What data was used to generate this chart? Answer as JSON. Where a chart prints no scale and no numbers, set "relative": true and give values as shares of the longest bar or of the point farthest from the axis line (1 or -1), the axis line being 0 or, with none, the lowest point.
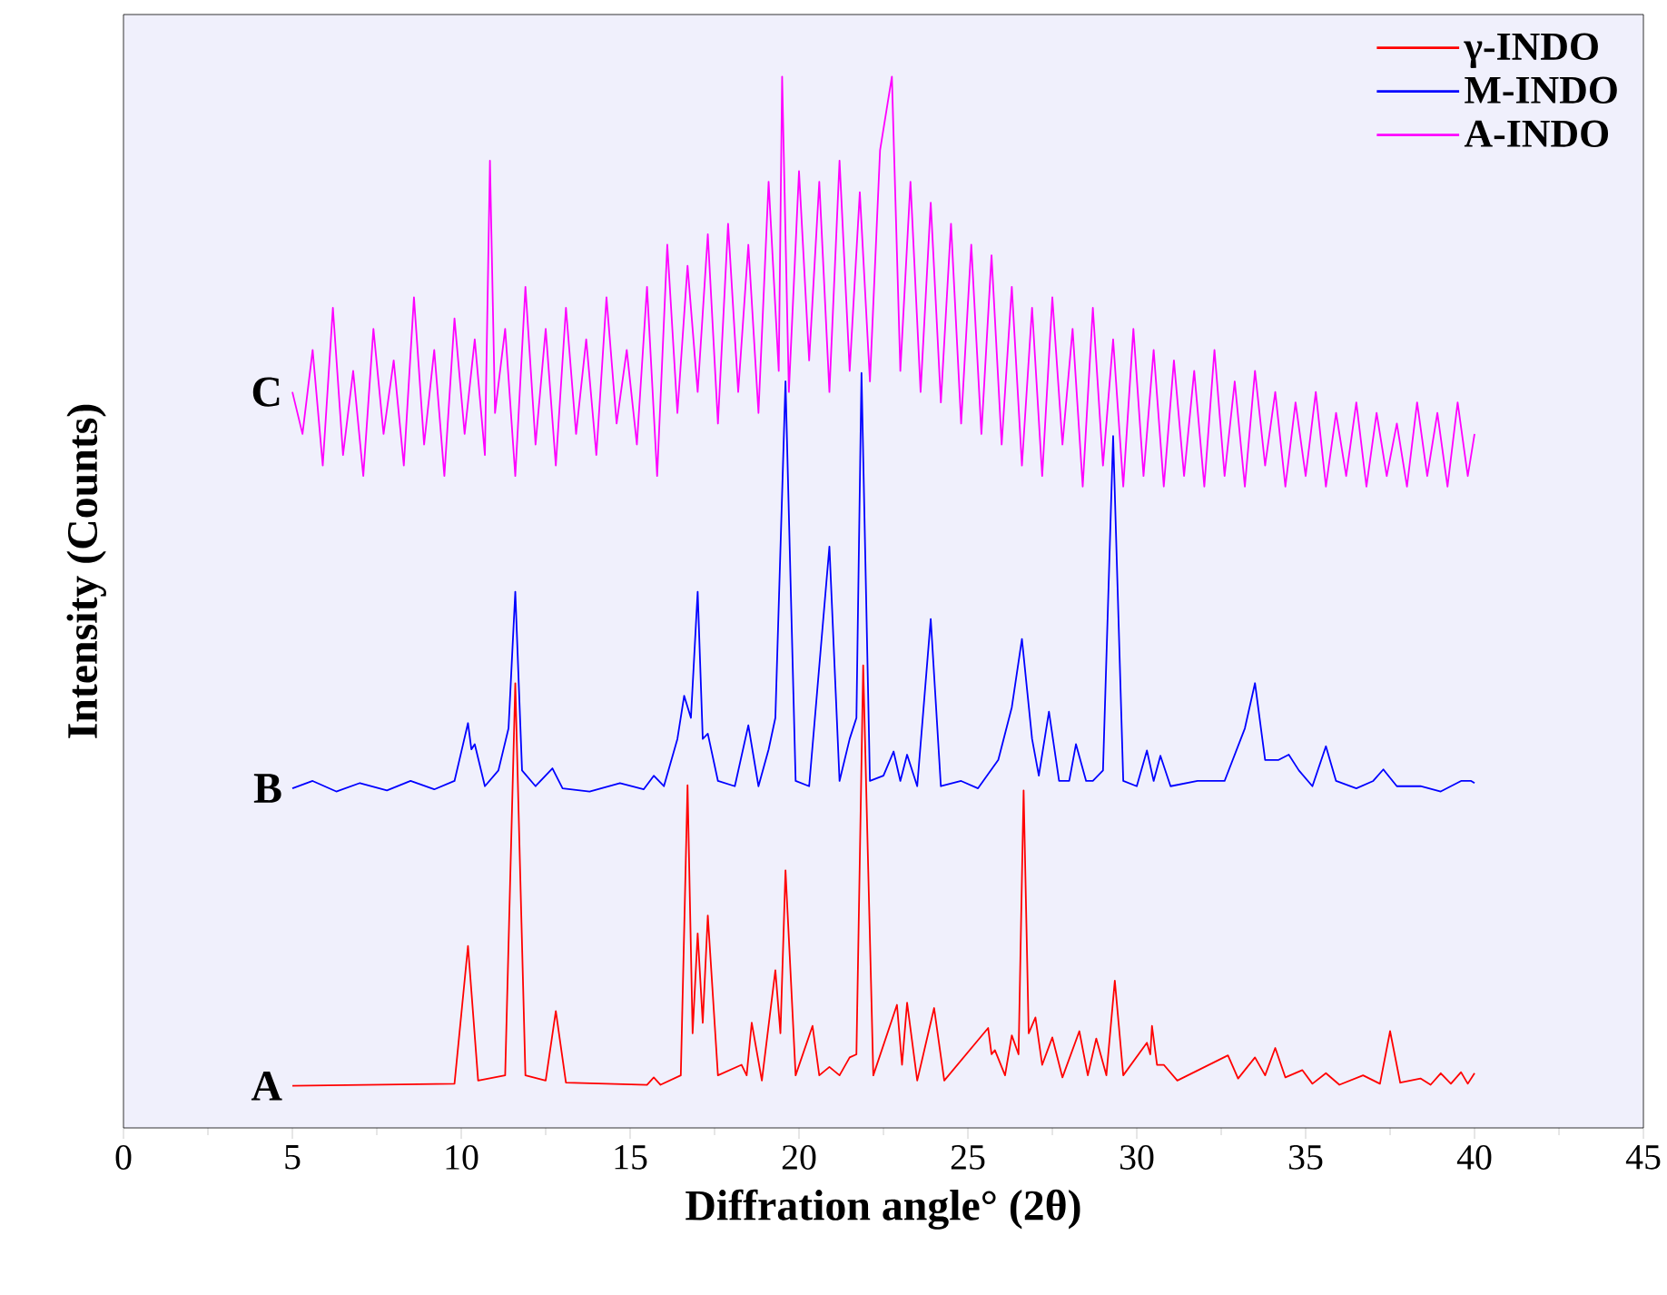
{
  "chart_data": {
    "type": "line",
    "relative": true,
    "xlabel": "Diffration angle° (2θ)",
    "ylabel": "Intensity (Counts)",
    "xlim": [
      0,
      45
    ],
    "xticks": [
      0,
      5,
      10,
      15,
      20,
      25,
      30,
      35,
      40,
      45
    ],
    "legend": "top right",
    "grid": false,
    "marker": "none",
    "line_style": "solid",
    "annotations": [
      "A",
      "B",
      "C"
    ],
    "series": [
      {
        "name": "γ-INDO",
        "color": "#ff0000",
        "x": [
          5,
          9.8,
          10.2,
          10.5,
          11.3,
          11.6,
          11.9,
          12.5,
          12.8,
          13.1,
          15.5,
          15.7,
          15.9,
          16.5,
          16.7,
          16.85,
          17.0,
          17.15,
          17.3,
          17.6,
          18.3,
          18.45,
          18.6,
          18.9,
          19.3,
          19.45,
          19.6,
          19.9,
          20.4,
          20.6,
          20.9,
          21.2,
          21.5,
          21.7,
          21.9,
          22.2,
          22.9,
          23.05,
          23.2,
          23.5,
          24.0,
          24.3,
          25.6,
          25.7,
          25.8,
          26.1,
          26.3,
          26.5,
          26.65,
          26.8,
          27.0,
          27.2,
          27.5,
          27.8,
          28.3,
          28.55,
          28.8,
          29.1,
          29.35,
          29.6,
          30.3,
          30.4,
          30.45,
          30.6,
          30.8,
          31.2,
          32.7,
          33.0,
          33.5,
          33.8,
          34.1,
          34.4,
          34.9,
          35.2,
          35.6,
          36.0,
          36.7,
          37.2,
          37.5,
          37.8,
          38.4,
          38.7,
          39.0,
          39.3,
          39.6,
          39.8,
          40
        ],
        "values": [
          0.04,
          0.042,
          0.173,
          0.045,
          0.05,
          0.423,
          0.05,
          0.045,
          0.111,
          0.043,
          0.041,
          0.048,
          0.041,
          0.05,
          0.326,
          0.09,
          0.185,
          0.1,
          0.202,
          0.05,
          0.06,
          0.05,
          0.1,
          0.045,
          0.15,
          0.09,
          0.245,
          0.05,
          0.097,
          0.05,
          0.058,
          0.05,
          0.067,
          0.07,
          0.44,
          0.05,
          0.117,
          0.06,
          0.119,
          0.045,
          0.114,
          0.045,
          0.095,
          0.07,
          0.074,
          0.05,
          0.088,
          0.07,
          0.321,
          0.09,
          0.105,
          0.06,
          0.086,
          0.048,
          0.092,
          0.05,
          0.085,
          0.05,
          0.14,
          0.05,
          0.081,
          0.07,
          0.097,
          0.06,
          0.06,
          0.045,
          0.069,
          0.047,
          0.067,
          0.05,
          0.076,
          0.048,
          0.055,
          0.042,
          0.052,
          0.041,
          0.05,
          0.042,
          0.092,
          0.043,
          0.047,
          0.041,
          0.052,
          0.042,
          0.053,
          0.042,
          0.052
        ]
      },
      {
        "name": "M-INDO",
        "color": "#0000ff",
        "x": [
          5,
          5.6,
          6.3,
          7.0,
          7.8,
          8.5,
          9.2,
          9.8,
          10.2,
          10.3,
          10.4,
          10.7,
          11.1,
          11.4,
          11.6,
          11.8,
          12.2,
          12.7,
          13.0,
          13.8,
          14.7,
          15.4,
          15.7,
          16.0,
          16.4,
          16.6,
          16.8,
          17.0,
          17.15,
          17.3,
          17.6,
          18.1,
          18.5,
          18.8,
          19.1,
          19.3,
          19.6,
          19.9,
          20.3,
          20.9,
          21.2,
          21.5,
          21.7,
          21.85,
          22.1,
          22.5,
          22.8,
          23.0,
          23.2,
          23.5,
          23.9,
          24.2,
          24.8,
          25.3,
          25.9,
          26.3,
          26.6,
          26.9,
          27.1,
          27.4,
          27.7,
          28.0,
          28.2,
          28.5,
          28.7,
          29.0,
          29.3,
          29.6,
          30.0,
          30.3,
          30.5,
          30.7,
          31.0,
          31.8,
          32.6,
          33.2,
          33.5,
          33.8,
          34.2,
          34.5,
          34.8,
          35.2,
          35.6,
          35.9,
          36.5,
          37.0,
          37.3,
          37.7,
          38.4,
          39.0,
          39.6,
          39.9,
          40
        ],
        "values": [
          0.323,
          0.33,
          0.32,
          0.328,
          0.321,
          0.33,
          0.322,
          0.33,
          0.385,
          0.36,
          0.365,
          0.325,
          0.34,
          0.38,
          0.51,
          0.34,
          0.325,
          0.342,
          0.323,
          0.32,
          0.328,
          0.322,
          0.335,
          0.325,
          0.37,
          0.411,
          0.39,
          0.51,
          0.37,
          0.375,
          0.33,
          0.325,
          0.383,
          0.325,
          0.36,
          0.39,
          0.71,
          0.33,
          0.325,
          0.553,
          0.33,
          0.37,
          0.39,
          0.718,
          0.33,
          0.335,
          0.358,
          0.33,
          0.355,
          0.325,
          0.484,
          0.325,
          0.33,
          0.323,
          0.35,
          0.4,
          0.465,
          0.37,
          0.335,
          0.396,
          0.33,
          0.33,
          0.365,
          0.33,
          0.33,
          0.34,
          0.658,
          0.33,
          0.325,
          0.359,
          0.33,
          0.354,
          0.325,
          0.33,
          0.33,
          0.38,
          0.423,
          0.35,
          0.35,
          0.355,
          0.34,
          0.325,
          0.363,
          0.33,
          0.323,
          0.33,
          0.341,
          0.325,
          0.325,
          0.32,
          0.33,
          0.33,
          0.328
        ]
      },
      {
        "name": "A-INDO",
        "color": "#ff00ff",
        "x": [
          5.0,
          5.3,
          5.6,
          5.9,
          6.2,
          6.5,
          6.8,
          7.1,
          7.4,
          7.7,
          8.0,
          8.3,
          8.6,
          8.9,
          9.2,
          9.5,
          9.8,
          10.1,
          10.4,
          10.7,
          10.85,
          11.0,
          11.3,
          11.6,
          11.9,
          12.2,
          12.5,
          12.8,
          13.1,
          13.4,
          13.7,
          14.0,
          14.3,
          14.6,
          14.9,
          15.2,
          15.5,
          15.8,
          16.1,
          16.4,
          16.7,
          17.0,
          17.3,
          17.6,
          17.9,
          18.2,
          18.5,
          18.8,
          19.1,
          19.4,
          19.5,
          19.7,
          20.0,
          20.3,
          20.6,
          20.9,
          21.2,
          21.5,
          21.8,
          22.1,
          22.4,
          22.75,
          23.0,
          23.3,
          23.6,
          23.9,
          24.2,
          24.5,
          24.8,
          25.1,
          25.4,
          25.7,
          26.0,
          26.3,
          26.6,
          26.9,
          27.2,
          27.5,
          27.8,
          28.1,
          28.4,
          28.7,
          29.0,
          29.3,
          29.6,
          29.9,
          30.2,
          30.5,
          30.8,
          31.1,
          31.4,
          31.7,
          32.0,
          32.3,
          32.6,
          32.9,
          33.2,
          33.5,
          33.8,
          34.1,
          34.4,
          34.7,
          35.0,
          35.3,
          35.6,
          35.9,
          36.2,
          36.5,
          36.8,
          37.1,
          37.4,
          37.7,
          38.0,
          38.3,
          38.6,
          38.9,
          39.2,
          39.5,
          39.8,
          40.0
        ],
        "values": [
          0.7,
          0.66,
          0.74,
          0.63,
          0.78,
          0.64,
          0.72,
          0.62,
          0.76,
          0.66,
          0.73,
          0.63,
          0.79,
          0.65,
          0.74,
          0.62,
          0.77,
          0.66,
          0.75,
          0.64,
          0.92,
          0.68,
          0.76,
          0.62,
          0.8,
          0.65,
          0.76,
          0.63,
          0.78,
          0.66,
          0.75,
          0.64,
          0.79,
          0.67,
          0.74,
          0.65,
          0.8,
          0.62,
          0.84,
          0.68,
          0.82,
          0.7,
          0.85,
          0.67,
          0.86,
          0.7,
          0.84,
          0.68,
          0.9,
          0.72,
          1.0,
          0.7,
          0.91,
          0.73,
          0.9,
          0.7,
          0.92,
          0.72,
          0.89,
          0.71,
          0.93,
          1.0,
          0.72,
          0.9,
          0.7,
          0.88,
          0.69,
          0.86,
          0.67,
          0.84,
          0.66,
          0.83,
          0.65,
          0.8,
          0.63,
          0.78,
          0.62,
          0.79,
          0.65,
          0.76,
          0.61,
          0.78,
          0.63,
          0.75,
          0.61,
          0.76,
          0.62,
          0.74,
          0.61,
          0.73,
          0.62,
          0.72,
          0.61,
          0.74,
          0.62,
          0.71,
          0.61,
          0.72,
          0.63,
          0.7,
          0.61,
          0.69,
          0.62,
          0.7,
          0.61,
          0.68,
          0.62,
          0.69,
          0.61,
          0.68,
          0.62,
          0.67,
          0.61,
          0.69,
          0.62,
          0.68,
          0.61,
          0.69,
          0.62,
          0.66
        ]
      }
    ]
  }
}
